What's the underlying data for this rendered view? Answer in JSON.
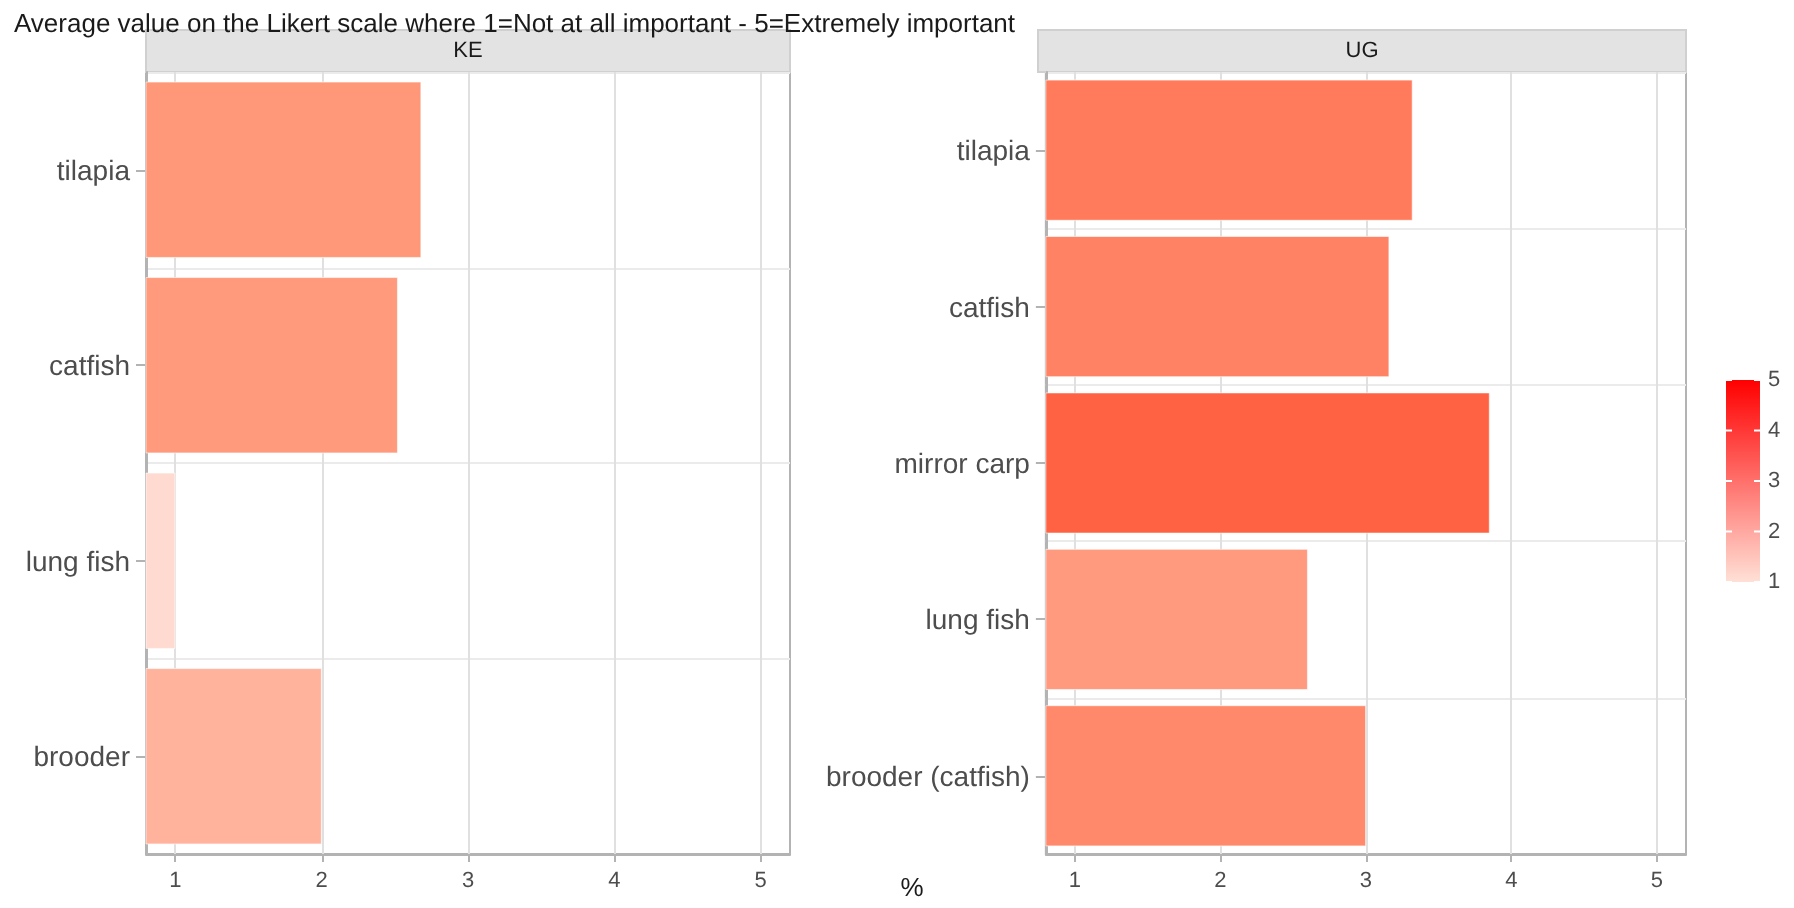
{
  "chart_data": [
    {
      "type": "bar",
      "orientation": "horizontal",
      "title": "Average value on the Likert scale where 1=Not at all important - 5=Extremely important",
      "subtitle": "KE",
      "categories": [
        "tilapia",
        "catfish",
        "lung fish",
        "brooder"
      ],
      "values": [
        2.68,
        2.52,
        1.0,
        2.0
      ],
      "colors": [
        "#ff9878",
        "#ff9a7c",
        "#ffdad0",
        "#ffb29c"
      ],
      "xlim": [
        0.8,
        5.2
      ],
      "xticks": [
        1,
        2,
        3,
        4,
        5
      ],
      "grid": true
    },
    {
      "type": "bar",
      "orientation": "horizontal",
      "subtitle": "UG",
      "xlabel": "%",
      "categories": [
        "tilapia",
        "catfish",
        "mirror carp",
        "lung fish",
        "brooder (catfish)"
      ],
      "values": [
        3.32,
        3.16,
        3.85,
        2.6,
        3.0
      ],
      "colors": [
        "#ff7b5c",
        "#ff8265",
        "#ff6242",
        "#ff9a7f",
        "#ff896a"
      ],
      "xlim": [
        0.8,
        5.2
      ],
      "xticks": [
        1,
        2,
        3,
        4,
        5
      ],
      "grid": true,
      "clim": [
        1,
        5
      ],
      "cticks": [
        1,
        2,
        3,
        4,
        5
      ]
    }
  ]
}
